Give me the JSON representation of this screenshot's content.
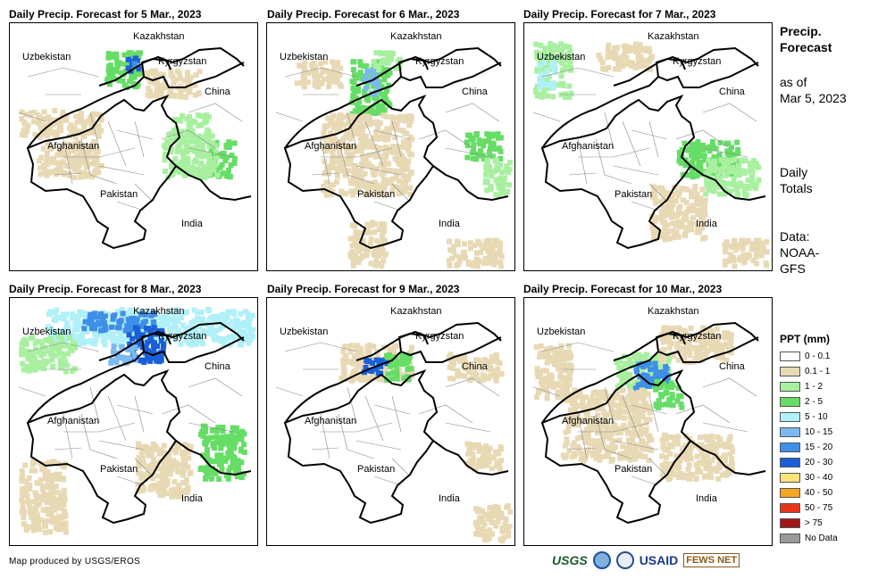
{
  "panels": [
    {
      "title": "Daily Precip. Forecast for 5 Mar., 2023"
    },
    {
      "title": "Daily Precip. Forecast for 6 Mar., 2023"
    },
    {
      "title": "Daily Precip. Forecast for 7 Mar., 2023"
    },
    {
      "title": "Daily Precip. Forecast for 8 Mar., 2023"
    },
    {
      "title": "Daily Precip. Forecast for 9 Mar., 2023"
    },
    {
      "title": "Daily Precip. Forecast for 10 Mar., 2023"
    }
  ],
  "map_labels": {
    "kazakhstan": "Kazakhstan",
    "uzbekistan": "Uzbekistan",
    "kyrgyzstan": "Kyrgyzstan",
    "china": "China",
    "afghanistan": "Afghanistan",
    "pakistan": "Pakistan",
    "india": "India"
  },
  "side": {
    "title_line1": "Precip.",
    "title_line2": "Forecast",
    "asof_line1": "as of",
    "asof_line2": "Mar 5, 2023",
    "daily_line1": "Daily",
    "daily_line2": "Totals",
    "data_line1": "Data:",
    "data_line2": "NOAA-",
    "data_line3": "GFS"
  },
  "legend": {
    "title": "PPT (mm)",
    "items": [
      {
        "label": "0 - 0.1",
        "color": "#ffffff"
      },
      {
        "label": "0.1 - 1",
        "color": "#e8d9b5"
      },
      {
        "label": "1 - 2",
        "color": "#a8f0a0"
      },
      {
        "label": "2 - 5",
        "color": "#66dd66"
      },
      {
        "label": "5 - 10",
        "color": "#b0f0f8"
      },
      {
        "label": "10 - 15",
        "color": "#7ab8f0"
      },
      {
        "label": "15 - 20",
        "color": "#3f8fe8"
      },
      {
        "label": "20 - 30",
        "color": "#1a5fd8"
      },
      {
        "label": "30 - 40",
        "color": "#fbe27a"
      },
      {
        "label": "40 - 50",
        "color": "#f5a623"
      },
      {
        "label": "50 - 75",
        "color": "#e8341c"
      },
      {
        "label": "> 75",
        "color": "#a01818"
      },
      {
        "label": "No Data",
        "color": "#999999"
      }
    ]
  },
  "credit": "Map produced by USGS/EROS",
  "logos": {
    "usgs": "USGS",
    "usaid": "USAID",
    "fews": "FEWS NET"
  }
}
